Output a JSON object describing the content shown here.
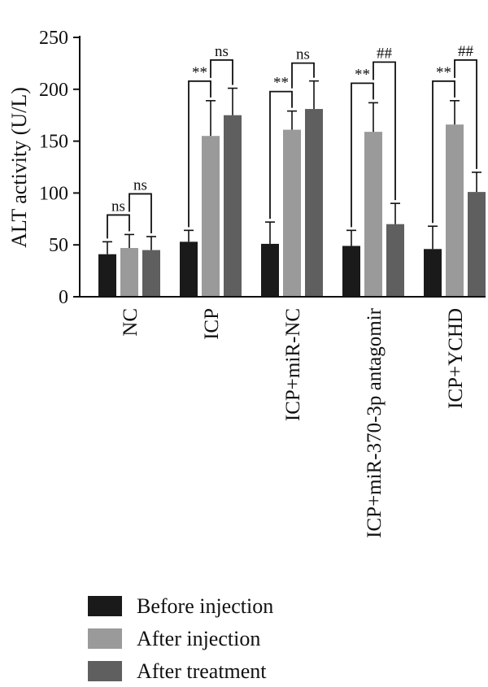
{
  "chart_data": {
    "type": "bar",
    "title": "",
    "xlabel": "",
    "ylabel": "ALT activity (U/L)",
    "ylim": [
      0,
      250
    ],
    "yticks": [
      "0",
      "50",
      "100",
      "150",
      "200",
      "250"
    ],
    "grid": false,
    "legend_position": "bottom-left",
    "categories": [
      "NC",
      "ICP",
      "ICP+miR-NC",
      "ICP+miR-370-3p antagomir",
      "ICP+YCHD"
    ],
    "series": [
      {
        "name": "Before injection",
        "color": "#1a1a1a",
        "values": [
          41,
          53,
          51,
          49,
          46
        ],
        "errors": [
          12,
          11,
          21,
          15,
          22
        ]
      },
      {
        "name": "After injection",
        "color": "#9a9a9a",
        "values": [
          47,
          155,
          161,
          159,
          166
        ],
        "errors": [
          13,
          34,
          18,
          28,
          23
        ]
      },
      {
        "name": "After treatment",
        "color": "#5f5f5f",
        "values": [
          45,
          175,
          181,
          70,
          101
        ],
        "errors": [
          13,
          26,
          27,
          20,
          19
        ]
      }
    ],
    "annotations": [
      {
        "category": "NC",
        "left_label": "ns",
        "right_label": "ns"
      },
      {
        "category": "ICP",
        "left_label": "**",
        "right_label": "ns"
      },
      {
        "category": "ICP+miR-NC",
        "left_label": "**",
        "right_label": "ns"
      },
      {
        "category": "ICP+miR-370-3p antagomir",
        "left_label": "**",
        "right_label": "##"
      },
      {
        "category": "ICP+YCHD",
        "left_label": "**",
        "right_label": "##"
      }
    ]
  }
}
